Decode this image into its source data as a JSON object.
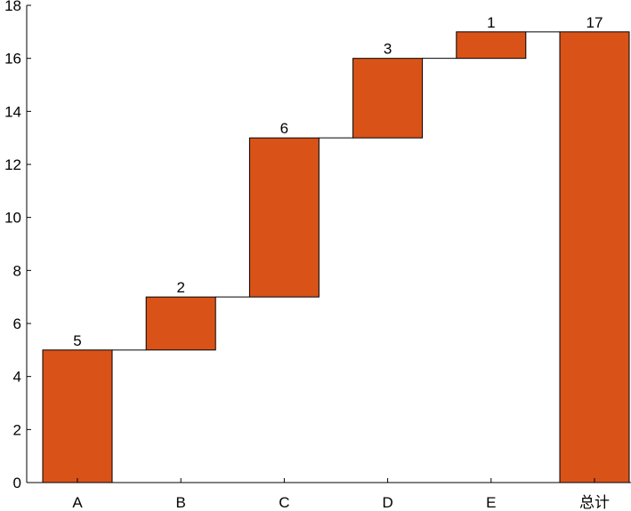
{
  "chart_data": {
    "type": "bar",
    "subtype": "waterfall",
    "categories": [
      "A",
      "B",
      "C",
      "D",
      "E",
      "总计"
    ],
    "values": [
      5,
      2,
      6,
      3,
      1,
      17
    ],
    "bases": [
      0,
      5,
      7,
      13,
      16,
      0
    ],
    "data_labels": [
      "5",
      "2",
      "6",
      "3",
      "1",
      "17"
    ],
    "title": "",
    "xlabel": "",
    "ylabel": "",
    "ylim": [
      0,
      18
    ],
    "yticks": [
      0,
      2,
      4,
      6,
      8,
      10,
      12,
      14,
      16,
      18
    ],
    "ytick_labels": [
      "0",
      "2",
      "4",
      "6",
      "8",
      "10",
      "12",
      "14",
      "16",
      "18"
    ],
    "grid": false,
    "legend": "none",
    "bar_color": "#D95319",
    "edge_color": "#000000",
    "connector_color": "#000000"
  }
}
